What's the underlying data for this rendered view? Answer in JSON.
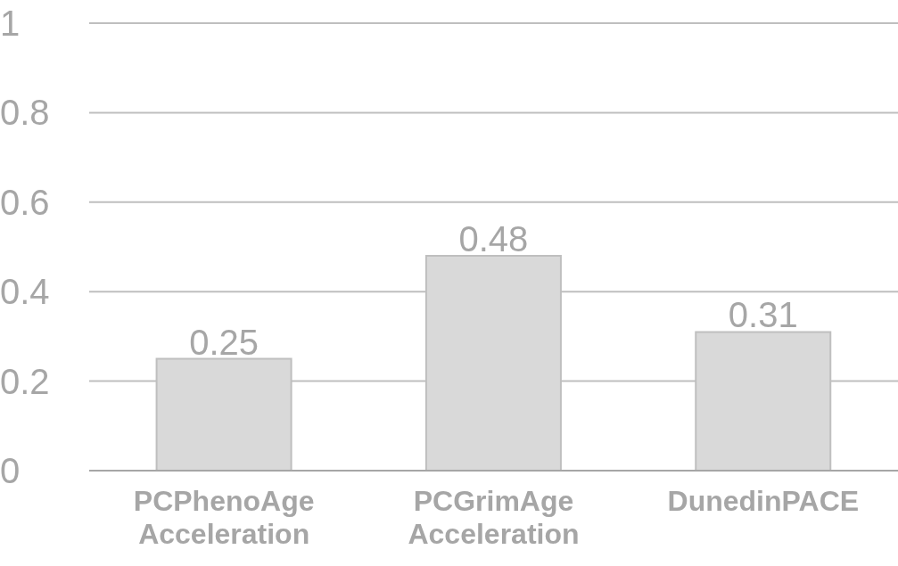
{
  "chart_data": {
    "type": "bar",
    "categories": [
      "PCPhenoAge Acceleration",
      "PCGrimAge Acceleration",
      "DunedinPACE"
    ],
    "values": [
      0.25,
      0.48,
      0.31
    ],
    "color": "#d9d9d9",
    "ylim": [
      0,
      1
    ],
    "yticks": [
      0,
      0.2,
      0.4,
      0.6,
      0.8,
      1
    ],
    "grid": "y",
    "data_labels": true
  }
}
